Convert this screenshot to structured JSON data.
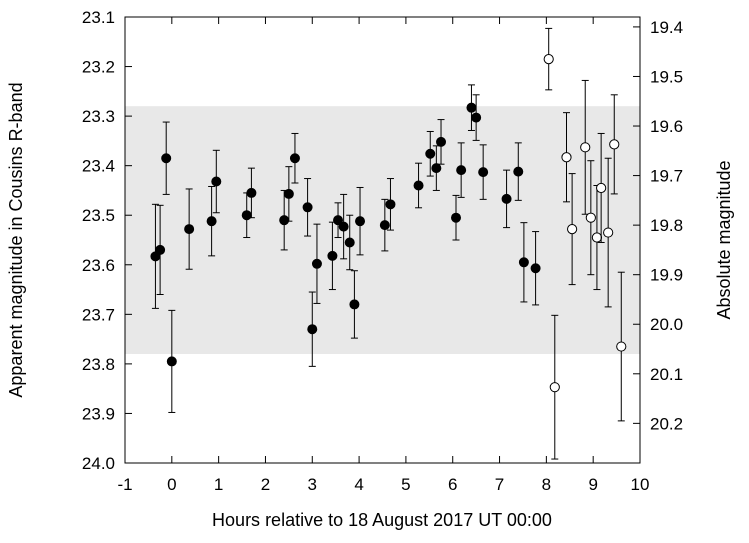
{
  "chart_data": {
    "type": "scatter",
    "xlabel": "Hours relative to 18 August 2017 UT 00:00",
    "ylabel": "Apparent magnitude in Cousins R-band",
    "y2label": "Absolute magnitude",
    "xlim": [
      -1,
      10
    ],
    "ylim": [
      23.1,
      24.0
    ],
    "y_inverted": true,
    "y2_offset": 3.72,
    "x_ticks": [
      "-1",
      "0",
      "1",
      "2",
      "3",
      "4",
      "5",
      "6",
      "7",
      "8",
      "9",
      "10"
    ],
    "y_ticks": [
      "23.1",
      "23.2",
      "23.3",
      "23.4",
      "23.5",
      "23.6",
      "23.7",
      "23.8",
      "23.9",
      "24.0"
    ],
    "y2_ticks": [
      "19.4",
      "19.5",
      "19.6",
      "19.7",
      "19.8",
      "19.9",
      "20.0",
      "20.1",
      "20.2"
    ],
    "band": {
      "y_from": 23.28,
      "y_to": 23.78,
      "color": "#e8e8e8"
    },
    "grid": false,
    "series": [
      {
        "marker": "filled-circle",
        "color": "#000000",
        "points": [
          {
            "x": -0.35,
            "y": 23.583,
            "err": 0.105
          },
          {
            "x": -0.25,
            "y": 23.57,
            "err": 0.09
          },
          {
            "x": -0.12,
            "y": 23.385,
            "err": 0.073
          },
          {
            "x": 0.0,
            "y": 23.795,
            "err": 0.103
          },
          {
            "x": 0.37,
            "y": 23.528,
            "err": 0.081
          },
          {
            "x": 0.85,
            "y": 23.512,
            "err": 0.07
          },
          {
            "x": 0.95,
            "y": 23.432,
            "err": 0.063
          },
          {
            "x": 1.6,
            "y": 23.5,
            "err": 0.045
          },
          {
            "x": 1.7,
            "y": 23.455,
            "err": 0.05
          },
          {
            "x": 2.4,
            "y": 23.51,
            "err": 0.06
          },
          {
            "x": 2.5,
            "y": 23.457,
            "err": 0.055
          },
          {
            "x": 2.63,
            "y": 23.385,
            "err": 0.05
          },
          {
            "x": 2.9,
            "y": 23.484,
            "err": 0.058
          },
          {
            "x": 3.0,
            "y": 23.73,
            "err": 0.075
          },
          {
            "x": 3.1,
            "y": 23.598,
            "err": 0.08
          },
          {
            "x": 3.43,
            "y": 23.582,
            "err": 0.068
          },
          {
            "x": 3.55,
            "y": 23.51,
            "err": 0.035
          },
          {
            "x": 3.67,
            "y": 23.523,
            "err": 0.065
          },
          {
            "x": 3.8,
            "y": 23.555,
            "err": 0.055
          },
          {
            "x": 3.9,
            "y": 23.68,
            "err": 0.068
          },
          {
            "x": 4.02,
            "y": 23.512,
            "err": 0.068
          },
          {
            "x": 4.55,
            "y": 23.52,
            "err": 0.052
          },
          {
            "x": 4.67,
            "y": 23.478,
            "err": 0.052
          },
          {
            "x": 5.27,
            "y": 23.44,
            "err": 0.045
          },
          {
            "x": 5.52,
            "y": 23.376,
            "err": 0.045
          },
          {
            "x": 5.65,
            "y": 23.405,
            "err": 0.045
          },
          {
            "x": 5.75,
            "y": 23.352,
            "err": 0.045
          },
          {
            "x": 6.07,
            "y": 23.505,
            "err": 0.045
          },
          {
            "x": 6.18,
            "y": 23.409,
            "err": 0.055
          },
          {
            "x": 6.4,
            "y": 23.283,
            "err": 0.046
          },
          {
            "x": 6.5,
            "y": 23.303,
            "err": 0.046
          },
          {
            "x": 6.65,
            "y": 23.413,
            "err": 0.055
          },
          {
            "x": 7.15,
            "y": 23.467,
            "err": 0.058
          },
          {
            "x": 7.4,
            "y": 23.412,
            "err": 0.058
          },
          {
            "x": 7.52,
            "y": 23.595,
            "err": 0.08
          },
          {
            "x": 7.77,
            "y": 23.607,
            "err": 0.074
          }
        ]
      },
      {
        "marker": "open-circle",
        "color": "#000000",
        "points": [
          {
            "x": 8.05,
            "y": 23.185,
            "err": 0.062
          },
          {
            "x": 8.18,
            "y": 23.847,
            "err": 0.145
          },
          {
            "x": 8.43,
            "y": 23.383,
            "err": 0.09
          },
          {
            "x": 8.55,
            "y": 23.528,
            "err": 0.112
          },
          {
            "x": 8.83,
            "y": 23.363,
            "err": 0.135
          },
          {
            "x": 8.95,
            "y": 23.505,
            "err": 0.115
          },
          {
            "x": 9.08,
            "y": 23.545,
            "err": 0.105
          },
          {
            "x": 9.17,
            "y": 23.445,
            "err": 0.11
          },
          {
            "x": 9.32,
            "y": 23.535,
            "err": 0.15
          },
          {
            "x": 9.45,
            "y": 23.357,
            "err": 0.1
          },
          {
            "x": 9.6,
            "y": 23.765,
            "err": 0.15
          }
        ]
      }
    ]
  }
}
